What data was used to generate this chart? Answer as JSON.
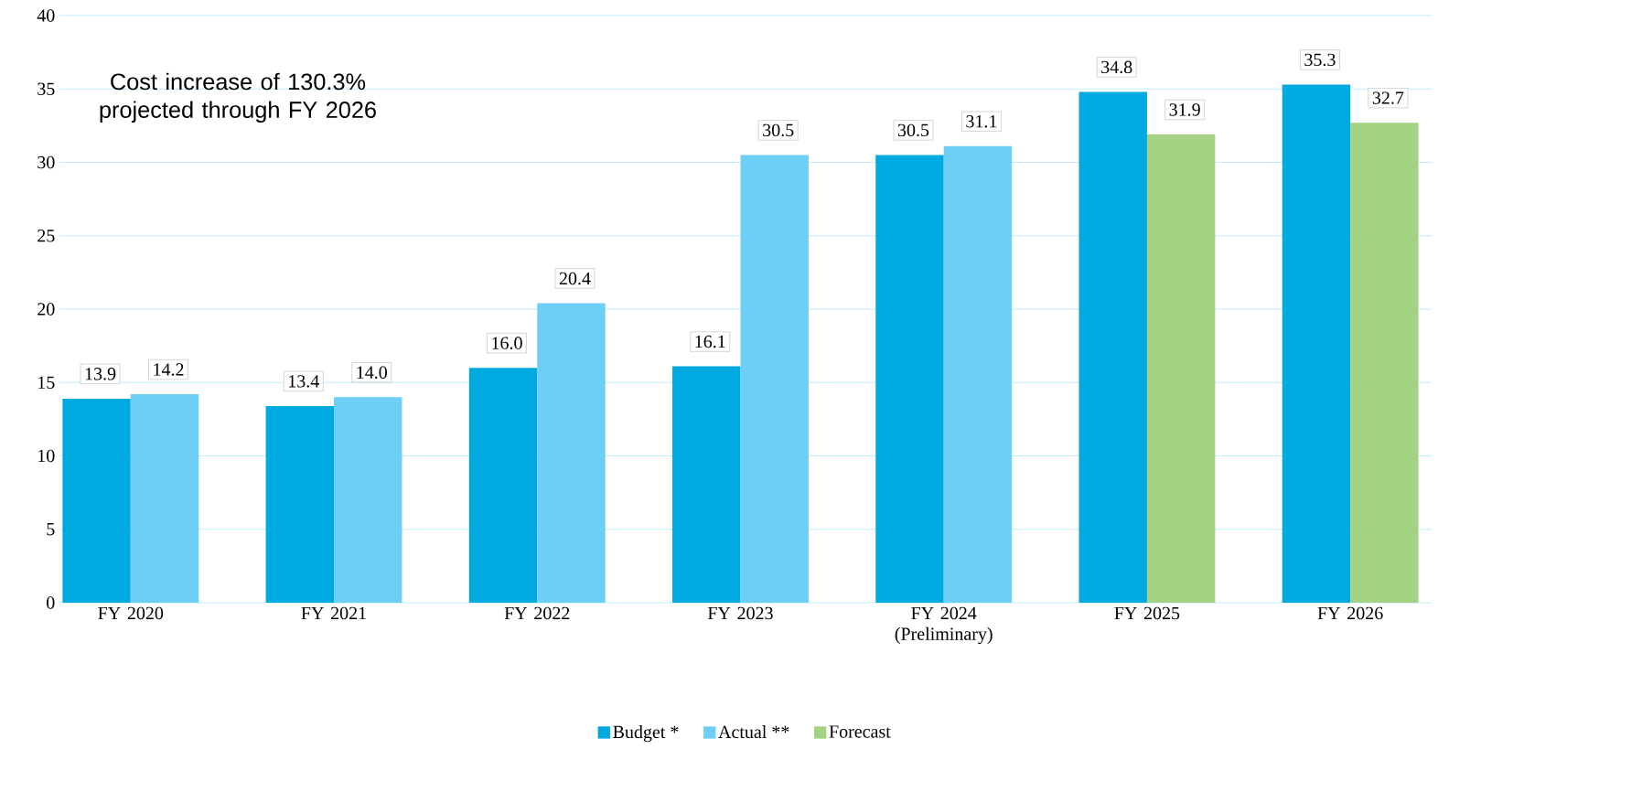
{
  "chart_data": {
    "type": "bar",
    "categories": [
      "FY 2020",
      "FY 2021",
      "FY 2022",
      "FY 2023",
      "FY 2024 (Preliminary)",
      "FY 2025",
      "FY 2026"
    ],
    "series": [
      {
        "name": "Budget *",
        "color": "#00a9e0",
        "values": [
          13.9,
          13.4,
          16.0,
          16.1,
          30.5,
          34.8,
          35.3
        ],
        "value_labels": [
          "13.9",
          "13.4",
          "16.0",
          "16.1",
          "30.5",
          "34.8",
          "35.3"
        ]
      },
      {
        "name": "Actual **",
        "color": "#6dcff6",
        "values": [
          14.2,
          14.0,
          20.4,
          30.5,
          31.1,
          null,
          null
        ],
        "value_labels": [
          "14.2",
          "14.0",
          "20.4",
          "30.5",
          "31.1",
          null,
          null
        ]
      },
      {
        "name": "Forecast",
        "color": "#a3d283",
        "values": [
          null,
          null,
          null,
          null,
          null,
          31.9,
          32.7
        ],
        "value_labels": [
          null,
          null,
          null,
          null,
          null,
          "31.9",
          "32.7"
        ]
      }
    ],
    "ylim": [
      0,
      40
    ],
    "yticks": [
      0,
      5,
      10,
      15,
      20,
      25,
      30,
      35,
      40
    ],
    "grid": "y",
    "legend": "bottom",
    "annotations": [
      "Cost increase of 130.3% projected through FY 2026"
    ]
  }
}
